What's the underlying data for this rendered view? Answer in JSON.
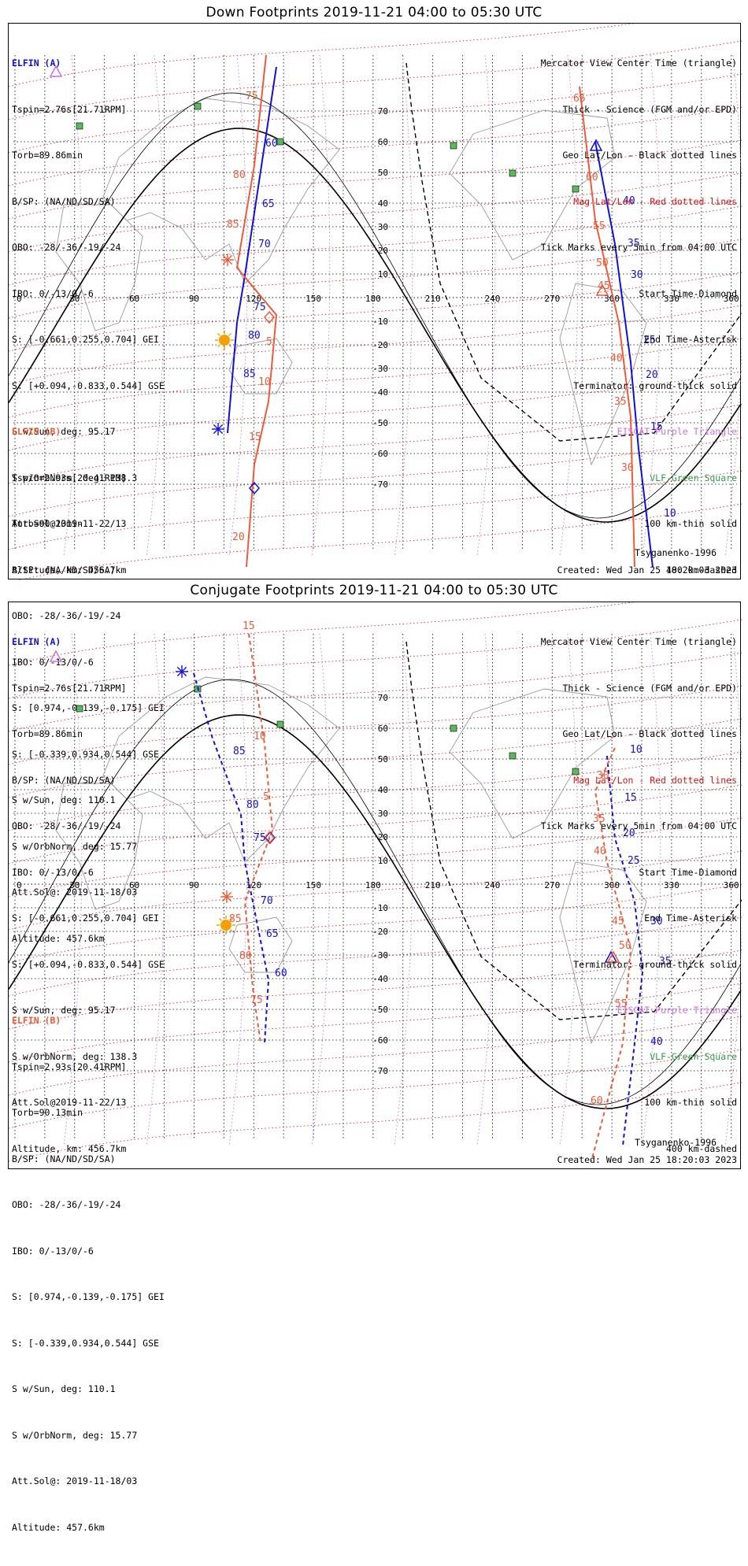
{
  "panels": [
    {
      "title": "Down Footprints 2019-11-21 04:00 to 05:30 UTC",
      "elfin_a": {
        "label": "ELFIN (A)",
        "lines": [
          "Tspin=2.76s[21.71RPM]",
          "Torb=89.86min",
          "B/SP: (NA/ND/SD/SA)",
          "OBO: -28/-36/-19/-24",
          "IBO: 0/-13/0/-6",
          "S: [-0.661,0.255,0.704] GEI",
          "S: [+0.094,-0.833,0.544] GSE",
          "S w/Sun, deg: 95.17",
          "S w/OrbNorm, deg: 138.3",
          "Att.Sol@2019-11-22/13",
          "Altitude, km: 456.7km"
        ]
      },
      "elfin_b": {
        "label": "ELFIN (B)",
        "lines": [
          "Tspin=2.93s[20.41RPM]",
          "Torb=90.13min",
          "B/SP: (NA/ND/SD/SA)",
          "OBO: -28/-36/-19/-24",
          "IBO: 0/-13/0/-6",
          "S: [0.974,-0.139,-0.175] GEI",
          "S: [-0.339,0.934,0.544] GSE",
          "S w/Sun, deg: 110.1",
          "S w/OrbNorm, deg: 15.77",
          "Att.Sol@: 2019-11-18/03",
          "Altitude: 457.6km"
        ]
      },
      "legend": [
        "Mercator View Center Time (triangle)",
        "Thick - Science (FGM and/or EPD)",
        "Geo Lat/Lon - Black dotted lines",
        "Mag Lat/Lon - Red dotted lines",
        "Tick Marks every 5min from 04:00 UTC",
        "Start Time-Diamond",
        "End Time-Asterisk",
        "Terminator: ground-thick solid",
        "EISCAT-Purple Triangle",
        "VLF-Green Square",
        "100 km-thin solid",
        "400 km-dashed"
      ],
      "model": "Tsyganenko-1996",
      "created": "Created: Wed Jan 25 18:20:03 2023",
      "blue_ticks": [
        [
          "60",
          [
            326,
            185
          ]
        ],
        [
          "65",
          [
            322,
            262
          ]
        ],
        [
          "70",
          [
            317,
            313
          ]
        ],
        [
          "75",
          [
            311,
            393
          ]
        ],
        [
          "80",
          [
            304,
            429
          ]
        ],
        [
          "85",
          [
            298,
            478
          ]
        ],
        [
          "40",
          [
            780,
            258
          ]
        ],
        [
          "35",
          [
            786,
            312
          ]
        ],
        [
          "30",
          [
            790,
            352
          ]
        ],
        [
          "25",
          [
            806,
            435
          ]
        ],
        [
          "20",
          [
            809,
            479
          ]
        ],
        [
          "15",
          [
            815,
            545
          ]
        ],
        [
          "10",
          [
            832,
            655
          ]
        ]
      ],
      "red_ticks": [
        [
          "75",
          [
            301,
            125
          ]
        ],
        [
          "80",
          [
            285,
            225
          ]
        ],
        [
          "85",
          [
            277,
            288
          ]
        ],
        [
          "5",
          [
            327,
            437
          ]
        ],
        [
          "10",
          [
            317,
            488
          ]
        ],
        [
          "15",
          [
            305,
            558
          ]
        ],
        [
          "20",
          [
            284,
            685
          ]
        ],
        [
          "65",
          [
            717,
            128
          ]
        ],
        [
          "60",
          [
            733,
            228
          ]
        ],
        [
          "55",
          [
            742,
            290
          ]
        ],
        [
          "50",
          [
            746,
            337
          ]
        ],
        [
          "45",
          [
            748,
            366
          ]
        ],
        [
          "40",
          [
            764,
            458
          ]
        ],
        [
          "35",
          [
            769,
            513
          ]
        ],
        [
          "30",
          [
            778,
            597
          ]
        ]
      ]
    },
    {
      "title": "Conjugate Footprints 2019-11-21 04:00 to 05:30 UTC",
      "elfin_a": {
        "label": "ELFIN (A)",
        "lines": [
          "Tspin=2.76s[21.71RPM]",
          "Torb=89.86min",
          "B/SP: (NA/ND/SD/SA)",
          "OBO: -28/-36/-19/-24",
          "IBO: 0/-13/0/-6",
          "S: [-0.661,0.255,0.704] GEI",
          "S: [+0.094,-0.833,0.544] GSE",
          "S w/Sun, deg: 95.17",
          "S w/OrbNorm, deg: 138.3",
          "Att.Sol@2019-11-22/13",
          "Altitude, km: 456.7km"
        ]
      },
      "elfin_b": {
        "label": "ELFIN (B)",
        "lines": [
          "Tspin=2.93s[20.41RPM]",
          "Torb=90.13min",
          "B/SP: (NA/ND/SD/SA)",
          "OBO: -28/-36/-19/-24",
          "IBO: 0/-13/0/-6",
          "S: [0.974,-0.139,-0.175] GEI",
          "S: [-0.339,0.934,0.544] GSE",
          "S w/Sun, deg: 110.1",
          "S w/OrbNorm, deg: 15.77",
          "Att.Sol@: 2019-11-18/03",
          "Altitude: 457.6km"
        ]
      },
      "legend": [
        "Mercator View Center Time (triangle)",
        "Thick - Science (FGM and/or EPD)",
        "Geo Lat/Lon - Black dotted lines",
        "Mag Lat/Lon - Red dotted lines",
        "Tick Marks every 5min from 04:00 UTC",
        "Start Time-Diamond",
        "End Time-Asterisk",
        "Terminator: ground-thick solid",
        "EISCAT-Purple Triangle",
        "VLF-Green Square",
        "100 km-thin solid",
        "400 km-dashed"
      ],
      "model": "Tsyganenko-1996",
      "created": "Created: Wed Jan 25 18:20:03 2023",
      "blue_ticks": [
        [
          "85",
          [
            285,
            957
          ]
        ],
        [
          "80",
          [
            302,
            1025
          ]
        ],
        [
          "75",
          [
            311,
            1067
          ]
        ],
        [
          "70",
          [
            320,
            1147
          ]
        ],
        [
          "65",
          [
            327,
            1189
          ]
        ],
        [
          "60",
          [
            338,
            1239
          ]
        ],
        [
          "10",
          [
            789,
            955
          ]
        ],
        [
          "15",
          [
            782,
            1016
          ]
        ],
        [
          "20",
          [
            780,
            1061
          ]
        ],
        [
          "25",
          [
            786,
            1096
          ]
        ],
        [
          "30",
          [
            815,
            1173
          ]
        ],
        [
          "35",
          [
            826,
            1224
          ]
        ],
        [
          "40",
          [
            815,
            1326
          ]
        ]
      ],
      "red_ticks": [
        [
          "15",
          [
            297,
            798
          ]
        ],
        [
          "10",
          [
            311,
            938
          ]
        ],
        [
          "5",
          [
            323,
            1015
          ]
        ],
        [
          "85",
          [
            280,
            1170
          ]
        ],
        [
          "80",
          [
            293,
            1217
          ]
        ],
        [
          "75",
          [
            307,
            1273
          ]
        ],
        [
          "30",
          [
            747,
            988
          ]
        ],
        [
          "35",
          [
            742,
            1043
          ]
        ],
        [
          "40",
          [
            743,
            1084
          ]
        ],
        [
          "45",
          [
            766,
            1173
          ]
        ],
        [
          "50",
          [
            775,
            1204
          ]
        ],
        [
          "55",
          [
            770,
            1278
          ]
        ],
        [
          "60",
          [
            739,
            1401
          ]
        ]
      ]
    }
  ],
  "axes": {
    "lon_labels": [
      "0",
      "30",
      "60",
      "90",
      "120",
      "150",
      "180",
      "210",
      "240",
      "270",
      "300",
      "330",
      "360"
    ],
    "lat_labels": [
      "70",
      "60",
      "50",
      "40",
      "30",
      "20",
      "10",
      "-10",
      "-20",
      "-30",
      "-40",
      "-50",
      "-60",
      "-70"
    ]
  },
  "colors": {
    "elfin_a": "#1010d8",
    "elfin_b": "#ef5a3a",
    "mag_grid": "#e01010",
    "geo_grid": "#000000",
    "eiscat": "#d070e0",
    "vlf": "#2ea043",
    "sun": "#f5a000"
  }
}
